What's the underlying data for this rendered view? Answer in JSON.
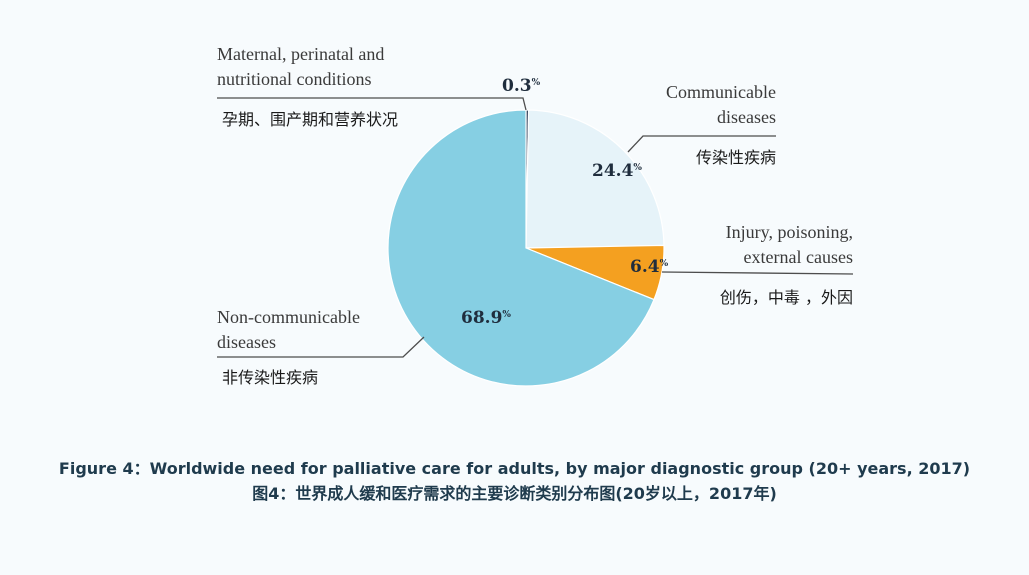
{
  "chart_data": {
    "type": "pie",
    "slices": [
      {
        "key": "maternal",
        "value": 0.3,
        "label": "0.3",
        "unit": "%",
        "color": "#2b3a55",
        "name_en": [
          "Maternal, perinatal and",
          "nutritional conditions"
        ],
        "name_zh": "孕期、围产期和营养状况"
      },
      {
        "key": "communicable",
        "value": 24.4,
        "label": "24.4",
        "unit": "%",
        "color": "#e6f3f9",
        "name_en": [
          "Communicable",
          "diseases"
        ],
        "name_zh": "传染性疾病"
      },
      {
        "key": "injury",
        "value": 6.4,
        "label": "6.4",
        "unit": "%",
        "color": "#f4a020",
        "name_en": [
          "Injury, poisoning,",
          "external causes"
        ],
        "name_zh": "创伤，中毒 ，外因"
      },
      {
        "key": "noncommunicable",
        "value": 68.9,
        "label": "68.9",
        "unit": "%",
        "color": "#86cfe3",
        "name_en": [
          "Non-communicable",
          "diseases"
        ],
        "name_zh": "非传染性疾病"
      }
    ],
    "start_angle_deg": 0,
    "direction": "clockwise",
    "title_en": "Figure 4：Worldwide need for palliative care for adults, by major diagnostic group (20+ years, 2017)",
    "title_zh": "图4：世界成人缓和医疗需求的主要诊断类别分布图(20岁以上，2017年)"
  }
}
